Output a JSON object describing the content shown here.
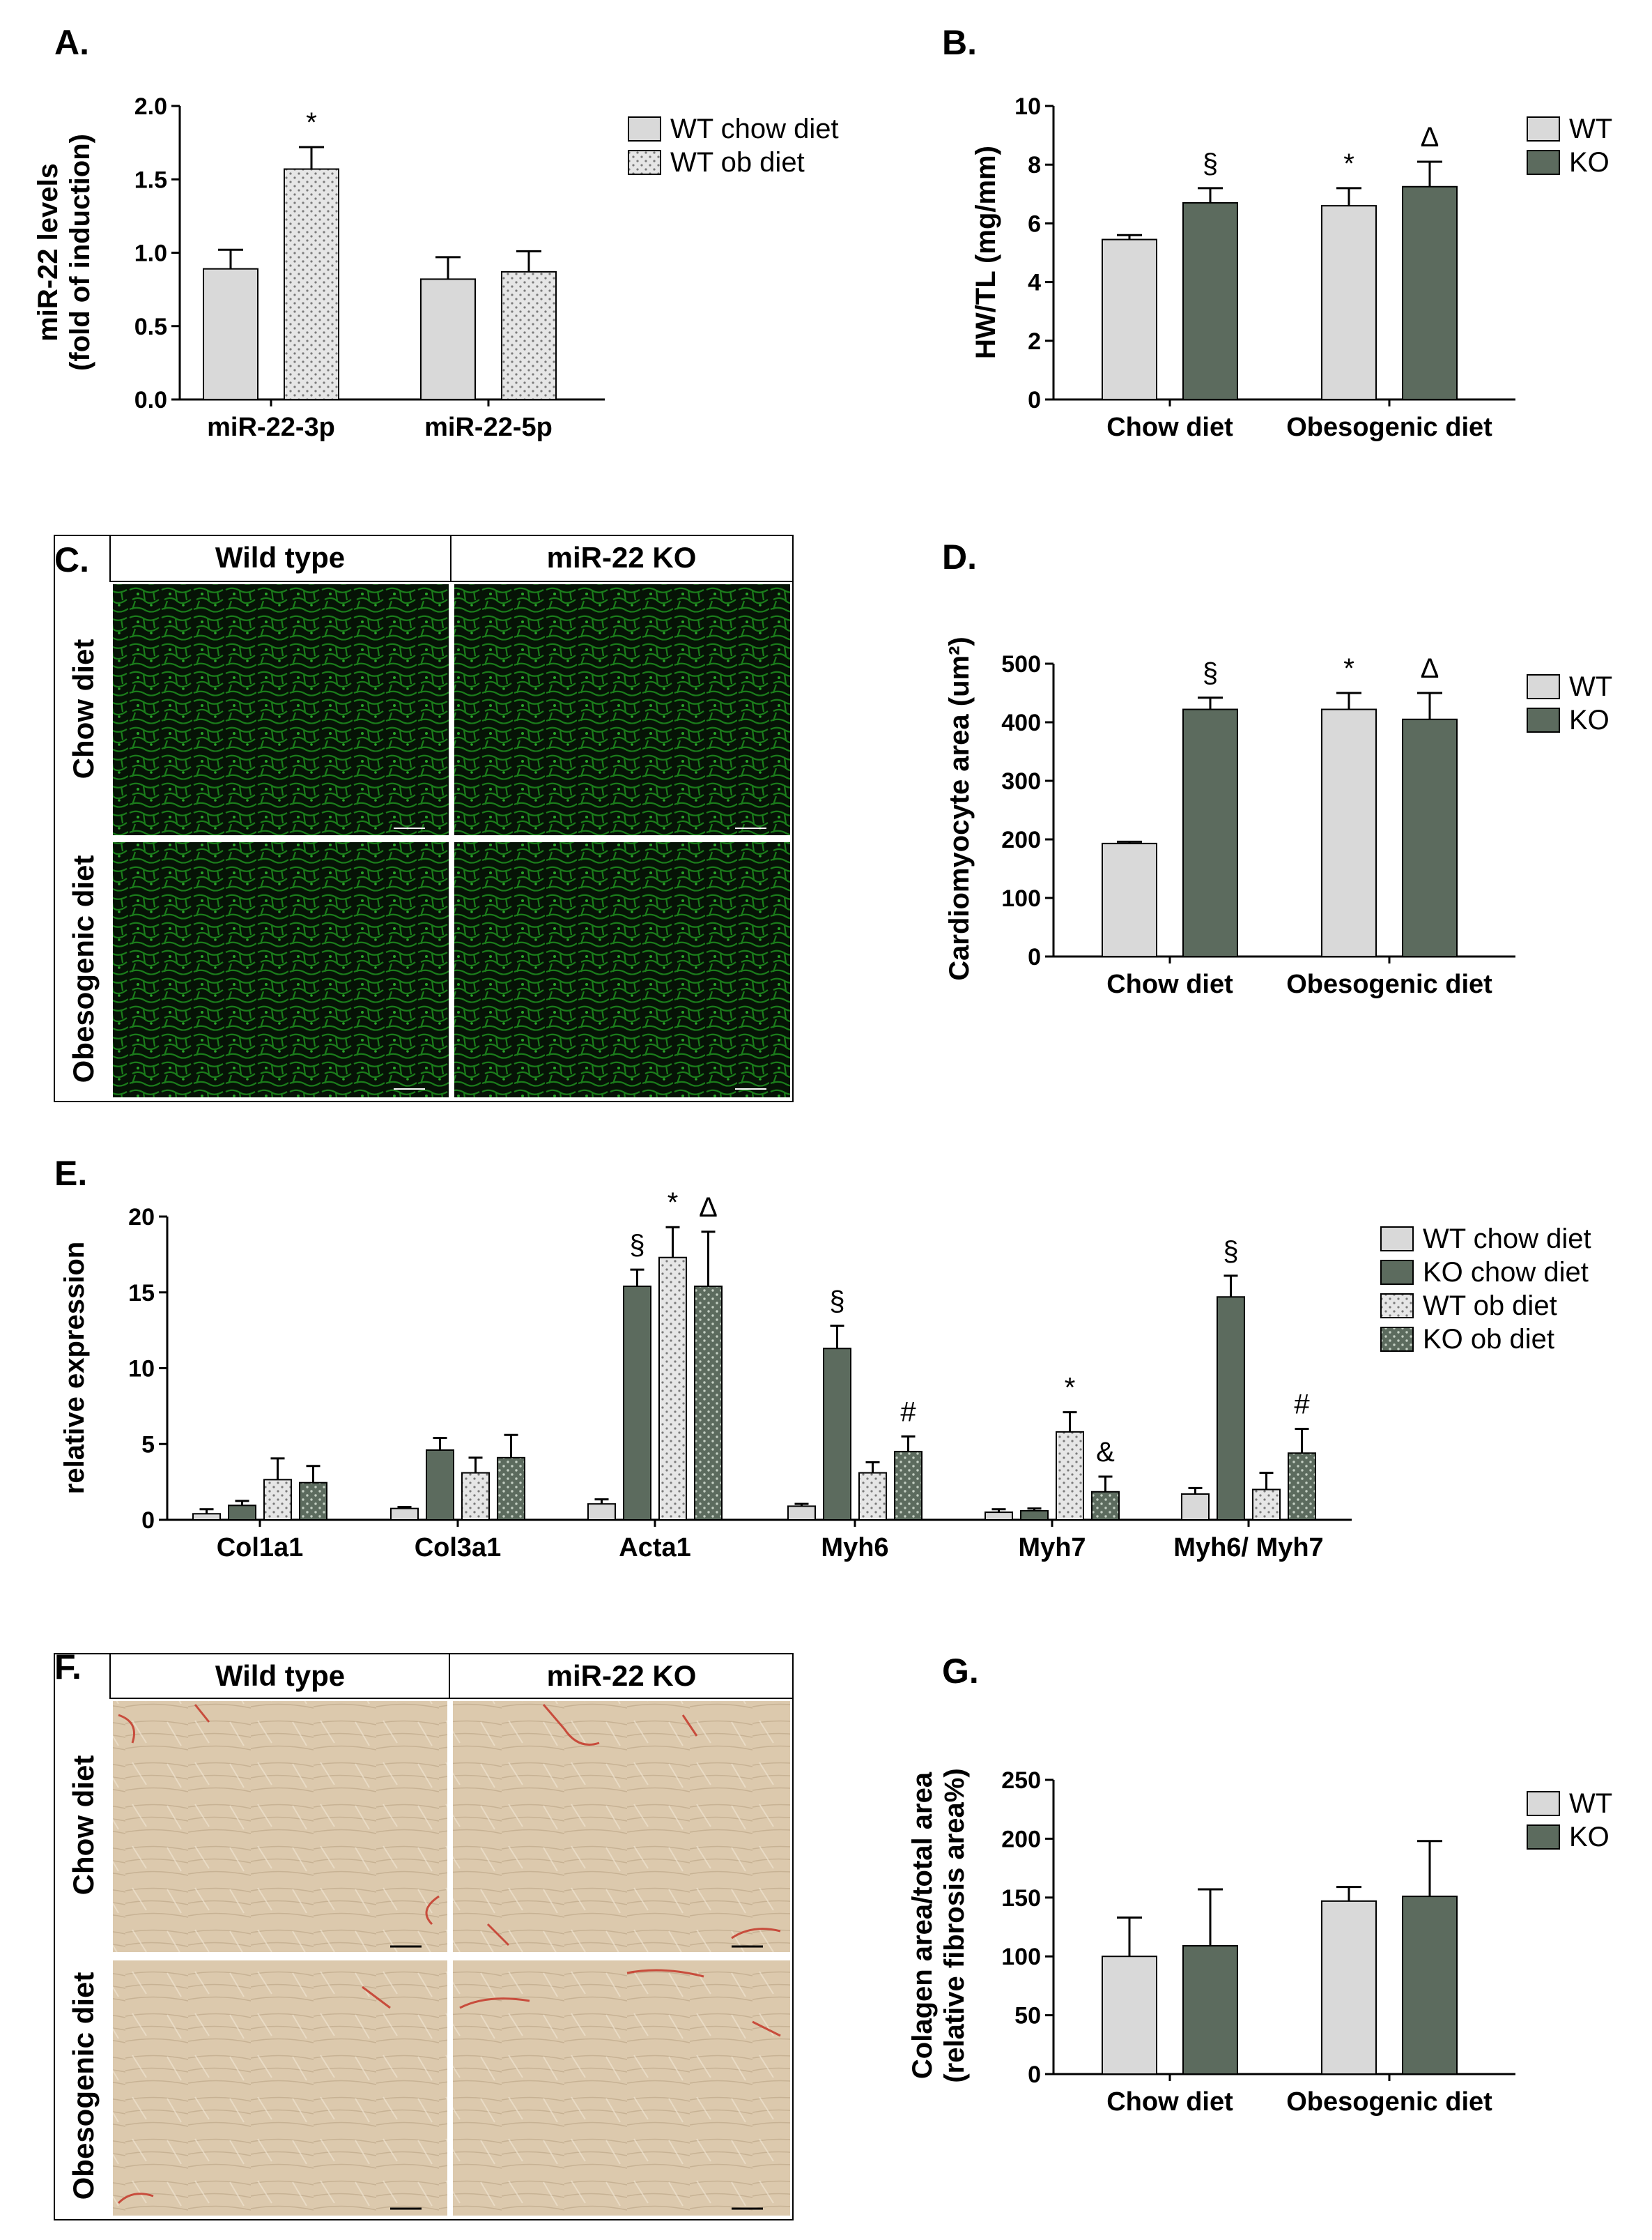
{
  "colors": {
    "wt": "#d9d9d9",
    "ko": "#5c6b5e",
    "wt_ob_dots": "#8a8a8a",
    "ko_ob_dots": "#c5d0c4",
    "fluor_green": "#1f8f1f",
    "histology_bg": "#dcc9ad",
    "histology_stain": "#c84c3c"
  },
  "micro_c": {
    "letter": "C.",
    "col_headers": [
      "Wild type",
      "miR-22 KO"
    ],
    "row_headers": [
      "Chow diet",
      "Obesogenic diet"
    ]
  },
  "micro_f": {
    "letter": "F.",
    "col_headers": [
      "Wild type",
      "miR-22 KO"
    ],
    "row_headers": [
      "Chow diet",
      "Obesogenic diet"
    ]
  },
  "chart_data": [
    {
      "panel": "A.",
      "type": "bar",
      "ylabel": "miR-22 levels\n(fold of induction)",
      "ylim": [
        0,
        2.0
      ],
      "yticks": [
        "0.0",
        "0.5",
        "1.0",
        "1.5",
        "2.0"
      ],
      "categories": [
        "miR-22-3p",
        "miR-22-5p"
      ],
      "series": [
        {
          "name": "WT chow diet",
          "pattern": "wt",
          "values": [
            0.89,
            0.82
          ],
          "errors": [
            0.13,
            0.15
          ]
        },
        {
          "name": "WT ob diet",
          "pattern": "wt_ob",
          "values": [
            1.57,
            0.87
          ],
          "errors": [
            0.15,
            0.14
          ]
        }
      ],
      "annotations": [
        {
          "category": 0,
          "series": 1,
          "text": "*"
        }
      ],
      "legend": "top-right"
    },
    {
      "panel": "B.",
      "type": "bar",
      "ylabel": "HW/TL  (mg/mm)",
      "ylim": [
        0,
        10
      ],
      "yticks": [
        "0",
        "2",
        "4",
        "6",
        "8",
        "10"
      ],
      "categories": [
        "Chow diet",
        "Obesogenic diet"
      ],
      "series": [
        {
          "name": "WT",
          "pattern": "wt",
          "values": [
            5.45,
            6.6
          ],
          "errors": [
            0.15,
            0.6
          ]
        },
        {
          "name": "KO",
          "pattern": "ko",
          "values": [
            6.7,
            7.25
          ],
          "errors": [
            0.5,
            0.85
          ]
        }
      ],
      "annotations": [
        {
          "category": 0,
          "series": 1,
          "text": "§"
        },
        {
          "category": 1,
          "series": 0,
          "text": "*"
        },
        {
          "category": 1,
          "series": 1,
          "text": "Δ"
        }
      ],
      "legend": "top-right"
    },
    {
      "panel": "D.",
      "type": "bar",
      "ylabel": "Cardiomyocyte area (um²)",
      "ylim": [
        0,
        500
      ],
      "yticks": [
        "0",
        "100",
        "200",
        "300",
        "400",
        "500"
      ],
      "categories": [
        "Chow diet",
        "Obesogenic diet"
      ],
      "series": [
        {
          "name": "WT",
          "pattern": "wt",
          "values": [
            193,
            422
          ],
          "errors": [
            3,
            28
          ]
        },
        {
          "name": "KO",
          "pattern": "ko",
          "values": [
            422,
            405
          ],
          "errors": [
            20,
            45
          ]
        }
      ],
      "annotations": [
        {
          "category": 0,
          "series": 1,
          "text": "§"
        },
        {
          "category": 1,
          "series": 0,
          "text": "*"
        },
        {
          "category": 1,
          "series": 1,
          "text": "Δ"
        }
      ],
      "legend": "top-right"
    },
    {
      "panel": "E.",
      "type": "bar",
      "ylabel": "relative expression",
      "ylim": [
        0,
        20
      ],
      "yticks": [
        "0",
        "5",
        "10",
        "15",
        "20"
      ],
      "categories": [
        "Col1a1",
        "Col3a1",
        "Acta1",
        "Myh6",
        "Myh7",
        "Myh6/ Myh7"
      ],
      "series": [
        {
          "name": "WT chow diet",
          "pattern": "wt",
          "values": [
            0.4,
            0.75,
            1.05,
            0.9,
            0.5,
            1.7
          ],
          "errors": [
            0.3,
            0.1,
            0.3,
            0.15,
            0.2,
            0.4
          ]
        },
        {
          "name": "KO chow diet",
          "pattern": "ko",
          "values": [
            0.95,
            4.6,
            15.4,
            11.3,
            0.6,
            14.7
          ],
          "errors": [
            0.3,
            0.8,
            1.1,
            1.5,
            0.15,
            1.4
          ]
        },
        {
          "name": "WT ob diet",
          "pattern": "wt_ob",
          "values": [
            2.65,
            3.1,
            17.3,
            3.1,
            5.8,
            2.0
          ],
          "errors": [
            1.4,
            1.0,
            2.0,
            0.7,
            1.3,
            1.1
          ]
        },
        {
          "name": "KO ob diet",
          "pattern": "ko_ob",
          "values": [
            2.45,
            4.1,
            15.4,
            4.5,
            1.85,
            4.4
          ],
          "errors": [
            1.1,
            1.5,
            3.6,
            1.0,
            1.0,
            1.6
          ]
        }
      ],
      "annotations": [
        {
          "category": 2,
          "series": 1,
          "text": "§"
        },
        {
          "category": 2,
          "series": 2,
          "text": "*"
        },
        {
          "category": 2,
          "series": 3,
          "text": "Δ"
        },
        {
          "category": 3,
          "series": 1,
          "text": "§"
        },
        {
          "category": 3,
          "series": 3,
          "text": "#"
        },
        {
          "category": 4,
          "series": 2,
          "text": "*"
        },
        {
          "category": 4,
          "series": 3,
          "text": "&"
        },
        {
          "category": 5,
          "series": 1,
          "text": "§"
        },
        {
          "category": 5,
          "series": 3,
          "text": "#"
        }
      ],
      "legend": "top-right"
    },
    {
      "panel": "G.",
      "type": "bar",
      "ylabel": "Colagen area/total area\n(relative fibrosis area%)",
      "ylim": [
        0,
        250
      ],
      "yticks": [
        "0",
        "50",
        "100",
        "150",
        "200",
        "250"
      ],
      "categories": [
        "Chow diet",
        "Obesogenic diet"
      ],
      "series": [
        {
          "name": "WT",
          "pattern": "wt",
          "values": [
            100,
            147
          ],
          "errors": [
            33,
            12
          ]
        },
        {
          "name": "KO",
          "pattern": "ko",
          "values": [
            109,
            151
          ],
          "errors": [
            48,
            47
          ]
        }
      ],
      "annotations": [],
      "legend": "top-right"
    }
  ]
}
